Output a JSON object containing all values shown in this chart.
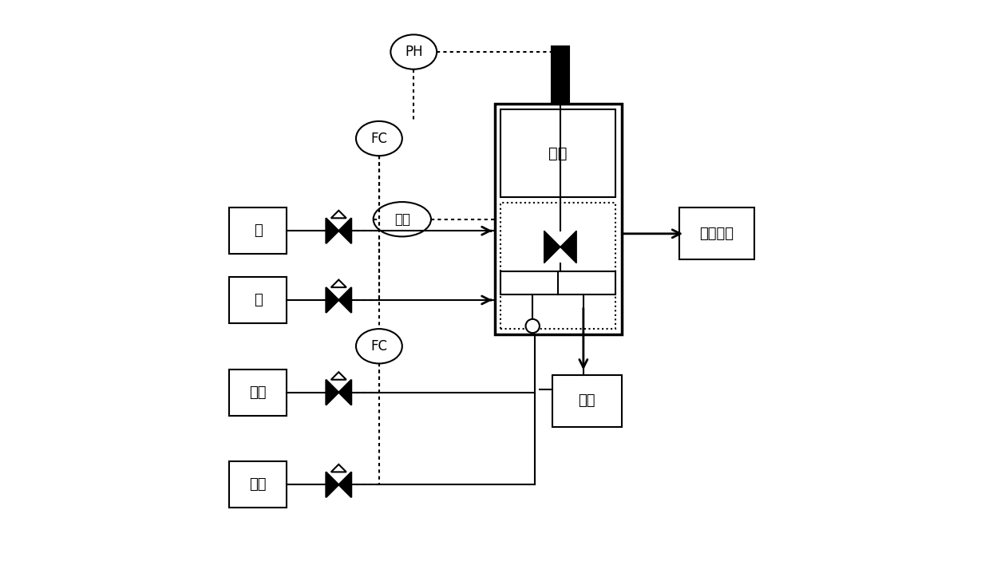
{
  "bg_color": "#ffffff",
  "line_color": "#000000",
  "dashed_color": "#000000",
  "boxes": {
    "acid": [
      0.04,
      0.36,
      0.1,
      0.08
    ],
    "alkali": [
      0.04,
      0.48,
      0.1,
      0.08
    ],
    "cold": [
      0.04,
      0.64,
      0.1,
      0.08
    ],
    "hot": [
      0.04,
      0.8,
      0.1,
      0.08
    ],
    "fajiao": [
      0.5,
      0.18,
      0.22,
      0.4
    ],
    "konqi": [
      0.6,
      0.65,
      0.12,
      0.09
    ],
    "peiyang": [
      0.82,
      0.36,
      0.13,
      0.09
    ]
  },
  "box_labels": {
    "acid": "酸",
    "alkali": "碱",
    "cold": "冷水",
    "hot": "热水",
    "fajiao": "发酵",
    "konqi": "空气",
    "peiyang": "培养基璇"
  },
  "ellipses": {
    "PH": [
      0.36,
      0.09,
      0.08,
      0.06
    ],
    "FC1": [
      0.3,
      0.24,
      0.08,
      0.06
    ],
    "wendu": [
      0.34,
      0.38,
      0.1,
      0.06
    ],
    "FC2": [
      0.3,
      0.6,
      0.08,
      0.06
    ]
  },
  "ellipse_labels": {
    "PH": "PH",
    "FC1": "FC",
    "wendu": "温度",
    "FC2": "FC"
  }
}
